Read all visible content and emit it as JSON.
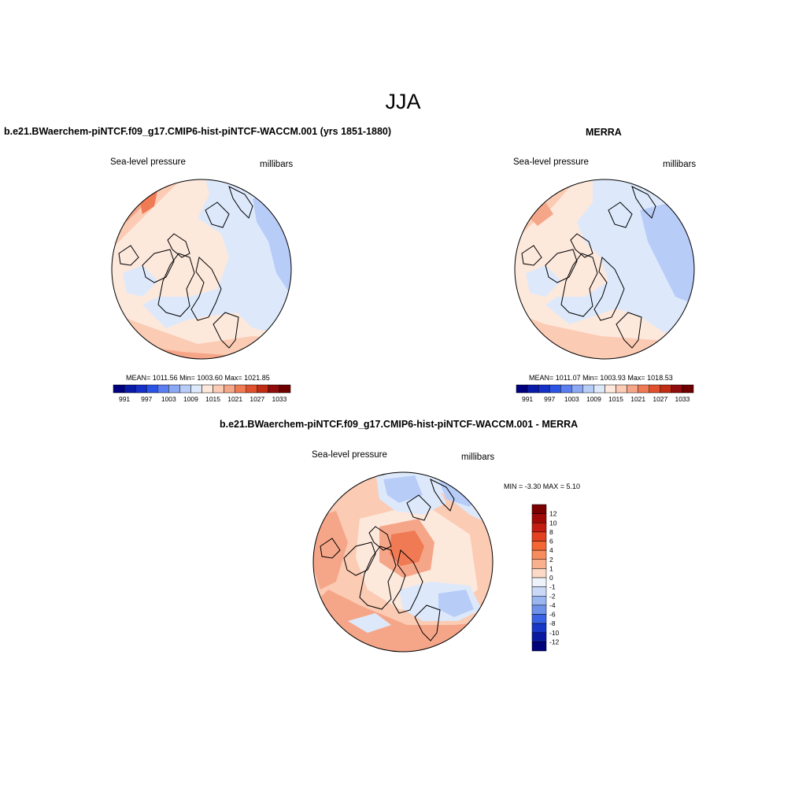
{
  "figure": {
    "title": "JJA"
  },
  "panels": [
    {
      "id": "model",
      "title": "b.e21.BWaerchem-piNTCF.f09_g17.CMIP6-hist-piNTCF-WACCM.001 (yrs 1851-1880)",
      "left_label": "Sea-level pressure",
      "right_label": "millibars",
      "stats": "MEAN= 1011.56  Min= 1003.60  Max= 1021.85"
    },
    {
      "id": "obs",
      "title": "MERRA",
      "left_label": "Sea-level pressure",
      "right_label": "millibars",
      "stats": "MEAN= 1011.07  Min= 1003.93  Max= 1018.53"
    },
    {
      "id": "diff",
      "title": "b.e21.BWaerchem-piNTCF.f09_g17.CMIP6-hist-piNTCF-WACCM.001 - MERRA",
      "left_label": "Sea-level pressure",
      "right_label": "millibars",
      "stats": "MIN =  -3.30 MAX =   5.10"
    }
  ],
  "colorbar_abs": {
    "labels": [
      "991",
      "997",
      "1003",
      "1009",
      "1015",
      "1021",
      "1027",
      "1033"
    ],
    "colors": [
      "#00007f",
      "#0a1aa8",
      "#1430c8",
      "#2c54e4",
      "#5a7ef0",
      "#8aa8f4",
      "#b8ccf8",
      "#dde9fb",
      "#fde8dc",
      "#fbcbb4",
      "#f6a688",
      "#f07a54",
      "#e0502c",
      "#c02c14",
      "#900c0c",
      "#6e0000"
    ]
  },
  "colorbar_diff": {
    "labels": [
      "12",
      "10",
      "8",
      "6",
      "4",
      "2",
      "1",
      "0",
      "-1",
      "-2",
      "-4",
      "-6",
      "-8",
      "-10",
      "-12"
    ],
    "colors": [
      "#7a0000",
      "#a00a06",
      "#c41c10",
      "#e2401e",
      "#f46632",
      "#f78c5c",
      "#f9b08e",
      "#fcd8c6",
      "#eef2fb",
      "#c8d8f6",
      "#9ab6f0",
      "#6e92ea",
      "#3a62e4",
      "#1838c8",
      "#0a1aa0",
      "#00007a"
    ]
  },
  "map_colors": {
    "base_pos": "#fde8dc",
    "pos1": "#fbcbb4",
    "pos2": "#f6a688",
    "pos3": "#f07a54",
    "neg1": "#dde9fb",
    "neg2": "#b8ccf8",
    "neg3": "#8aa8f4",
    "coast": "#000000"
  }
}
